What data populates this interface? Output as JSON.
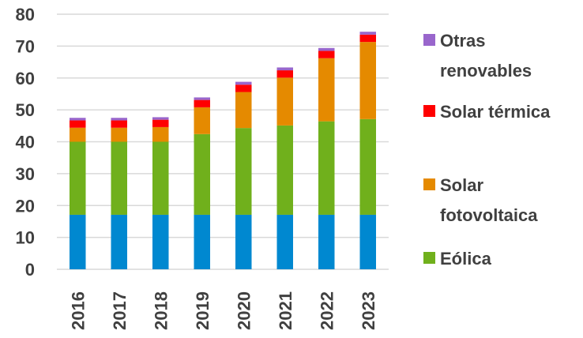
{
  "chart_data": {
    "type": "bar",
    "stacked": true,
    "title": "",
    "xlabel": "",
    "ylabel": "",
    "ylim": [
      0,
      80
    ],
    "yticks": [
      0,
      10,
      20,
      30,
      40,
      50,
      60,
      70,
      80
    ],
    "grid": true,
    "legend_position": "right",
    "categories": [
      "2016",
      "2017",
      "2018",
      "2019",
      "2020",
      "2021",
      "2022",
      "2023"
    ],
    "series": [
      {
        "key": "hidraulica",
        "color": "#0088d0",
        "values": [
          17.1,
          17.1,
          17.1,
          17.1,
          17.1,
          17.1,
          17.1,
          17.1
        ]
      },
      {
        "name": "Eólica",
        "key": "eolica",
        "color": "#70b01c",
        "values": [
          22.9,
          22.9,
          22.9,
          25.3,
          27.2,
          28.0,
          29.3,
          30.0
        ]
      },
      {
        "name": "Solar fotovoltaica",
        "key": "fv",
        "color": "#e58a00",
        "values": [
          4.4,
          4.4,
          4.6,
          8.4,
          11.3,
          15.0,
          19.8,
          24.2
        ]
      },
      {
        "name": "Solar térmica",
        "key": "termica",
        "color": "#ff0000",
        "values": [
          2.3,
          2.3,
          2.3,
          2.3,
          2.3,
          2.3,
          2.3,
          2.3
        ]
      },
      {
        "name": "Otras renovables",
        "key": "otras",
        "color": "#9966cc",
        "values": [
          0.8,
          0.8,
          0.8,
          0.8,
          0.9,
          0.9,
          0.9,
          0.9
        ]
      }
    ],
    "legend": [
      {
        "key": "otras",
        "lines": [
          "Otras",
          "renovables"
        ]
      },
      {
        "key": "termica",
        "lines": [
          "Solar térmica"
        ]
      },
      {
        "key": "fv",
        "lines": [
          "Solar",
          "fotovoltaica"
        ]
      },
      {
        "key": "eolica",
        "lines": [
          "Eólica"
        ]
      }
    ]
  }
}
